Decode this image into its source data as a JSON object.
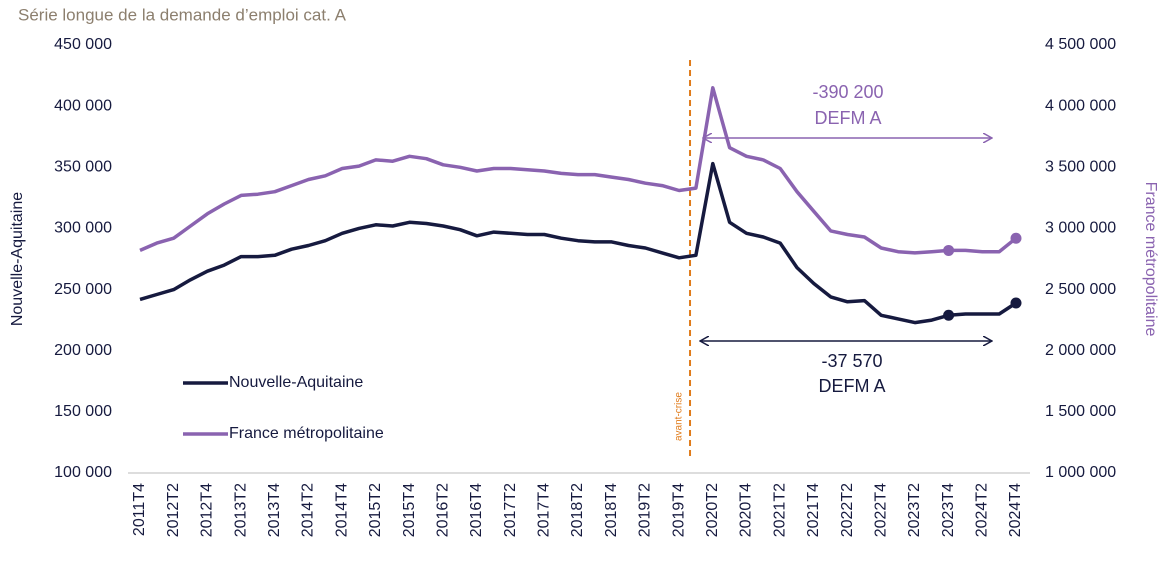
{
  "chart_data": {
    "type": "line",
    "title": "Série longue de la demande d’emploi cat. A",
    "ylabel": "Nouvelle-Aquitaine",
    "y2label": "France métropolitaine",
    "categories": [
      "2011T4",
      null,
      "2012T2",
      null,
      "2012T4",
      null,
      "2013T2",
      null,
      "2013T4",
      null,
      "2014T2",
      null,
      "2014T4",
      null,
      "2015T2",
      null,
      "2015T4",
      null,
      "2016T2",
      null,
      "2016T4",
      null,
      "2017T2",
      null,
      "2017T4",
      null,
      "2018T2",
      null,
      "2018T4",
      null,
      "2019T2",
      null,
      "2019T4",
      null,
      "2020T2",
      null,
      "2020T4",
      null,
      "2021T2",
      null,
      "2021T4",
      null,
      "2022T2",
      null,
      "2022T4",
      null,
      "2023T2",
      null,
      "2023T4",
      null,
      "2024T2",
      null,
      "2024T4"
    ],
    "series": [
      {
        "name": "Nouvelle-Aquitaine",
        "color": "#161a3f",
        "marker_indices": [
          48,
          52
        ],
        "values": [
          242000,
          246000,
          250000,
          258000,
          265000,
          270000,
          277000,
          277000,
          278000,
          283000,
          286000,
          290000,
          296000,
          300000,
          303000,
          302000,
          305000,
          304000,
          302000,
          299000,
          294000,
          297000,
          296000,
          295000,
          295000,
          292000,
          290000,
          289000,
          289000,
          286000,
          284000,
          280000,
          276000,
          278000,
          353000,
          305000,
          296000,
          293000,
          288000,
          268000,
          255000,
          244000,
          240000,
          241000,
          229000,
          226000,
          223000,
          225000,
          229000,
          230000,
          230000,
          230000,
          239000
        ]
      },
      {
        "name": "France métropolitaine",
        "color": "#8a63b0",
        "axis": "y2",
        "marker_indices": [
          48,
          52
        ],
        "values": [
          2820000,
          2880000,
          2920000,
          3020000,
          3120000,
          3200000,
          3270000,
          3280000,
          3300000,
          3350000,
          3400000,
          3430000,
          3490000,
          3510000,
          3560000,
          3550000,
          3590000,
          3570000,
          3520000,
          3500000,
          3470000,
          3490000,
          3490000,
          3480000,
          3470000,
          3450000,
          3440000,
          3440000,
          3420000,
          3400000,
          3370000,
          3350000,
          3310000,
          3330000,
          4150000,
          3660000,
          3590000,
          3560000,
          3490000,
          3300000,
          3140000,
          2980000,
          2950000,
          2930000,
          2840000,
          2810000,
          2800000,
          2810000,
          2820000,
          2820000,
          2810000,
          2810000,
          2920000
        ]
      }
    ],
    "ylim": [
      100000,
      450000
    ],
    "yticks": [
      {
        "value": 100000,
        "label": "100 000"
      },
      {
        "value": 150000,
        "label": "150 000"
      },
      {
        "value": 200000,
        "label": "200 000"
      },
      {
        "value": 250000,
        "label": "250 000"
      },
      {
        "value": 300000,
        "label": "300 000"
      },
      {
        "value": 350000,
        "label": "350 000"
      },
      {
        "value": 400000,
        "label": "400 000"
      },
      {
        "value": 450000,
        "label": "450 000"
      }
    ],
    "y2lim": [
      1000000,
      4500000
    ],
    "y2ticks": [
      {
        "value": 1000000,
        "label": "1 000 000"
      },
      {
        "value": 1500000,
        "label": "1 500 000"
      },
      {
        "value": 2000000,
        "label": "2 000 000"
      },
      {
        "value": 2500000,
        "label": "2 500 000"
      },
      {
        "value": 3000000,
        "label": "3 000 000"
      },
      {
        "value": 3500000,
        "label": "3 500 000"
      },
      {
        "value": 4000000,
        "label": "4 000 000"
      },
      {
        "value": 4500000,
        "label": "4 500 000"
      }
    ],
    "grid": false,
    "legend": "lower left",
    "annotations": [
      "-390 200",
      "DEFM A",
      "-37 570",
      "DEFM A",
      "avant-crise"
    ]
  }
}
